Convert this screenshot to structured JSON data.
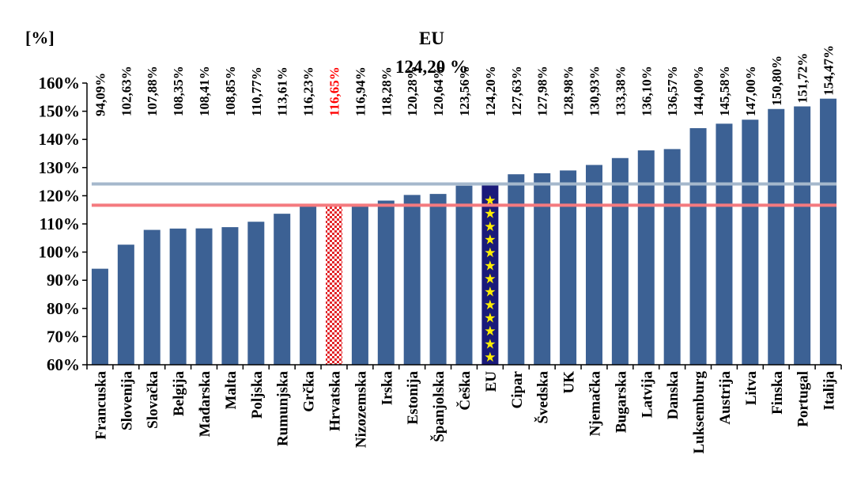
{
  "chart_data": {
    "type": "bar",
    "ylabel": "[%]",
    "ylim": [
      60,
      160
    ],
    "ytick_step": 10,
    "ytick_labels": [
      "60%",
      "70%",
      "80%",
      "90%",
      "100%",
      "110%",
      "120%",
      "130%",
      "140%",
      "150%",
      "160%"
    ],
    "annotation": {
      "title": "EU",
      "value": "124,20 %"
    },
    "categories": [
      "Francuska",
      "Slovenija",
      "Slovačka",
      "Belgija",
      "Mađarska",
      "Malta",
      "Poljska",
      "Rumunjska",
      "Grčka",
      "Hrvatska",
      "Nizozemska",
      "Irska",
      "Estonija",
      "Španjolska",
      "Češka",
      "EU",
      "Cipar",
      "Švedska",
      "UK",
      "Njemačka",
      "Bugarska",
      "Latvija",
      "Danska",
      "Luksemburg",
      "Austrija",
      "Litva",
      "Finska",
      "Portugal",
      "Italija"
    ],
    "values": [
      94.09,
      102.63,
      107.88,
      108.35,
      108.41,
      108.85,
      110.77,
      113.61,
      116.23,
      116.65,
      116.94,
      118.28,
      120.28,
      120.64,
      123.56,
      124.2,
      127.63,
      127.98,
      128.98,
      130.93,
      133.38,
      136.1,
      136.57,
      144.0,
      145.58,
      147.0,
      150.8,
      151.72,
      154.47
    ],
    "value_labels": [
      "94,09%",
      "102,63%",
      "107,88%",
      "108,35%",
      "108,41%",
      "108,85%",
      "110,77%",
      "113,61%",
      "116,23%",
      "116,65%",
      "116,94%",
      "118,28%",
      "120,28%",
      "120,64%",
      "123,56%",
      "124,20%",
      "127,63%",
      "127,98%",
      "128,98%",
      "130,93%",
      "133,38%",
      "136,10%",
      "136,57%",
      "144,00%",
      "145,58%",
      "147,00%",
      "150,80%",
      "151,72%",
      "154,47%"
    ],
    "reference_lines": [
      {
        "value": 124.2,
        "color": "#a5b8cc"
      },
      {
        "value": 116.65,
        "color": "#f47a7f"
      }
    ],
    "colors": {
      "bar": "#3c6194",
      "highlight_label": "#ff0000",
      "eu_bar": "#1a1a7a",
      "eu_star": "#ffee00",
      "checker": "#e2262a"
    },
    "highlighted_categories": [
      "Hrvatska"
    ],
    "eu_category": "EU",
    "grid": false
  }
}
